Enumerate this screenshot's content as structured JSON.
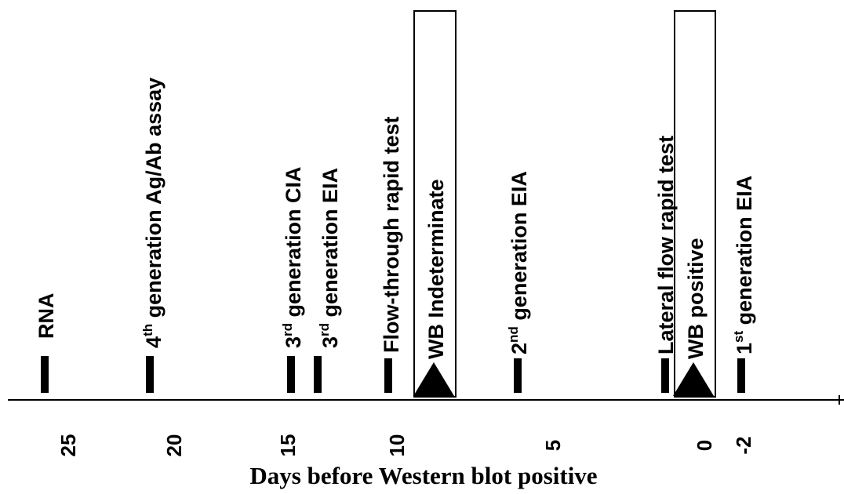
{
  "title": "",
  "axis_title": "Days before Western blot positive",
  "markers": [
    {
      "id": "rna",
      "parts": [
        {
          "t": "RNA"
        }
      ]
    },
    {
      "id": "gen4",
      "parts": [
        {
          "t": "4"
        },
        {
          "t": "th",
          "sup": true
        },
        {
          "t": " generation Ag/Ab assay"
        }
      ]
    },
    {
      "id": "gen3-cia",
      "parts": [
        {
          "t": "3"
        },
        {
          "t": "rd",
          "sup": true
        },
        {
          "t": " generation CIA"
        }
      ]
    },
    {
      "id": "gen3-eia",
      "parts": [
        {
          "t": "3"
        },
        {
          "t": "rd",
          "sup": true
        },
        {
          "t": " generation EIA"
        }
      ]
    },
    {
      "id": "flow-through",
      "parts": [
        {
          "t": "Flow-through rapid test"
        }
      ]
    },
    {
      "id": "gen2-eia",
      "parts": [
        {
          "t": "2"
        },
        {
          "t": "nd",
          "sup": true
        },
        {
          "t": " generation EIA"
        }
      ]
    },
    {
      "id": "lateral-flow",
      "parts": [
        {
          "t": "Lateral flow rapid test"
        }
      ]
    },
    {
      "id": "gen1-eia",
      "parts": [
        {
          "t": "1"
        },
        {
          "t": "st",
          "sup": true
        },
        {
          "t": " generation EIA"
        }
      ]
    }
  ],
  "boxes": [
    {
      "id": "wb-indeterminate",
      "label": "WB Indeterminate"
    },
    {
      "id": "wb-positive",
      "label": "WB positive"
    }
  ],
  "ticks": [
    "25",
    "20",
    "15",
    "10",
    "5",
    "0",
    "-2"
  ]
}
